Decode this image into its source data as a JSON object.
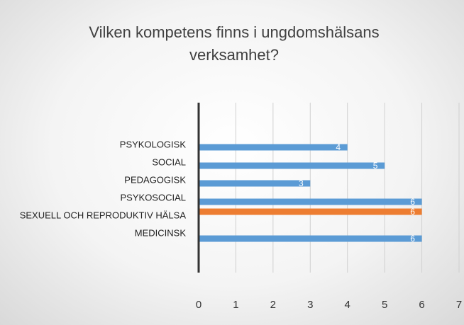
{
  "chart_data": {
    "type": "barh",
    "title": "Vilken kompetens finns i ungdomshälsans verksamhet?",
    "categories": [
      "PSYKOLOGISK",
      "SOCIAL",
      "PEDAGOGISK",
      "PSYKOSOCIAL",
      "SEXUELL OCH REPRODUKTIV HÄLSA",
      "MEDICINSK"
    ],
    "values": [
      4,
      5,
      3,
      6,
      6,
      6
    ],
    "colors": [
      "#5b9bd5",
      "#5b9bd5",
      "#5b9bd5",
      "#5b9bd5",
      "#ed7d31",
      "#5b9bd5"
    ],
    "xlim": [
      0,
      7
    ],
    "xticks": [
      0,
      1,
      2,
      3,
      4,
      5,
      6,
      7
    ],
    "grid": true
  }
}
